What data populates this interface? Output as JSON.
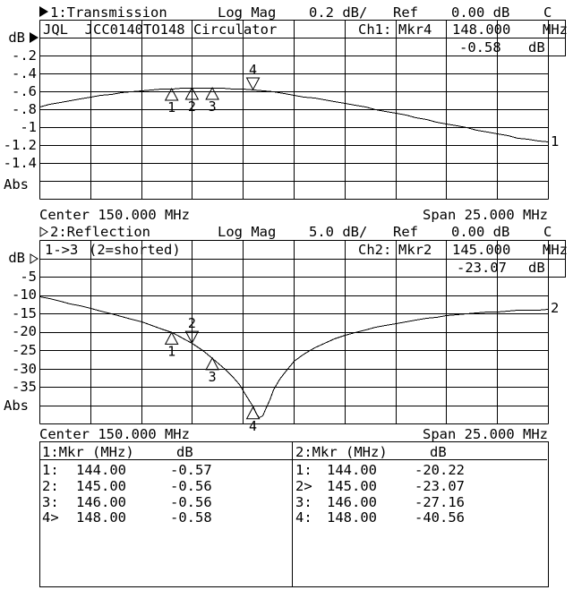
{
  "ch1": {
    "header": {
      "title": "1:Transmission",
      "format": "Log Mag",
      "scale": "0.2 dB/",
      "ref_label": "Ref",
      "ref_value": "0.00 dB",
      "cor": "C"
    },
    "info": {
      "device": "JQL  JCC0140TO148 Circulator",
      "mkr_channel": "Ch1:",
      "mkr_name": "Mkr4",
      "mkr_freq": "148.000",
      "mkr_freq_unit": "MHz",
      "mkr_value": "-0.58",
      "mkr_value_unit": "dB"
    },
    "y_axis": {
      "unit": "dB",
      "ticks": [
        "-.2",
        "-.4",
        "-.6",
        "-.8",
        "-1",
        "-1.2",
        "-1.4"
      ],
      "abs": "Abs"
    },
    "center": "Center 150.000 MHz",
    "span": "Span 25.000 MHz",
    "trace_number": "1"
  },
  "ch2": {
    "header": {
      "title": "2:Reflection",
      "format": "Log Mag",
      "scale": "5.0 dB/",
      "ref_label": "Ref",
      "ref_value": "0.00 dB",
      "cor": "C"
    },
    "info": {
      "path": "1->3",
      "note": "(2=shorted)",
      "mkr_channel": "Ch2:",
      "mkr_name": "Mkr2",
      "mkr_freq": "145.000",
      "mkr_freq_unit": "MHz",
      "mkr_value": "-23.07",
      "mkr_value_unit": "dB"
    },
    "y_axis": {
      "unit": "dB",
      "ticks": [
        "-5",
        "-10",
        "-15",
        "-20",
        "-25",
        "-30",
        "-35"
      ],
      "abs": "Abs"
    },
    "center": "Center 150.000 MHz",
    "span": "Span 25.000 MHz",
    "trace_number": "2"
  },
  "tables": {
    "t1": {
      "title": "1:Mkr (MHz)",
      "unit": "dB",
      "rows": [
        [
          "1:",
          "144.00",
          "-0.57"
        ],
        [
          "2:",
          "145.00",
          "-0.56"
        ],
        [
          "3:",
          "146.00",
          "-0.56"
        ],
        [
          "4>",
          "148.00",
          "-0.58"
        ]
      ]
    },
    "t2": {
      "title": "2:Mkr (MHz)",
      "unit": "dB",
      "rows": [
        [
          "1:",
          "144.00",
          "-20.22"
        ],
        [
          "2>",
          "145.00",
          "-23.07"
        ],
        [
          "3:",
          "146.00",
          "-27.16"
        ],
        [
          "4:",
          "148.00",
          "-40.56"
        ]
      ]
    }
  },
  "chart_data": [
    {
      "type": "line",
      "title": "1:Transmission",
      "format": "Log Mag",
      "scale_db_per_div": 0.2,
      "ref_db": 0.0,
      "x_unit": "MHz",
      "center_mhz": 150.0,
      "span_mhz": 25.0,
      "xlim": [
        137.5,
        162.5
      ],
      "ylim": [
        -1.8,
        0.2
      ],
      "grid": [
        10,
        10
      ],
      "series": [
        {
          "name": "1",
          "points": [
            [
              137.5,
              -0.77
            ],
            [
              138,
              -0.74
            ],
            [
              138.5,
              -0.72
            ],
            [
              139,
              -0.7
            ],
            [
              139.5,
              -0.68
            ],
            [
              140,
              -0.66
            ],
            [
              140.5,
              -0.64
            ],
            [
              141,
              -0.63
            ],
            [
              141.5,
              -0.61
            ],
            [
              142,
              -0.6
            ],
            [
              142.5,
              -0.59
            ],
            [
              143,
              -0.58
            ],
            [
              143.5,
              -0.575
            ],
            [
              144,
              -0.57
            ],
            [
              144.5,
              -0.565
            ],
            [
              145,
              -0.56
            ],
            [
              145.5,
              -0.558
            ],
            [
              146,
              -0.56
            ],
            [
              146.5,
              -0.565
            ],
            [
              147,
              -0.57
            ],
            [
              147.5,
              -0.575
            ],
            [
              148,
              -0.58
            ],
            [
              148.5,
              -0.59
            ],
            [
              149,
              -0.6
            ],
            [
              149.5,
              -0.62
            ],
            [
              150,
              -0.64
            ],
            [
              150.5,
              -0.655
            ],
            [
              151,
              -0.67
            ],
            [
              151.5,
              -0.69
            ],
            [
              152,
              -0.71
            ],
            [
              152.5,
              -0.73
            ],
            [
              153,
              -0.75
            ],
            [
              153.5,
              -0.77
            ],
            [
              154,
              -0.8
            ],
            [
              154.5,
              -0.82
            ],
            [
              155,
              -0.84
            ],
            [
              155.5,
              -0.86
            ],
            [
              156,
              -0.89
            ],
            [
              156.5,
              -0.91
            ],
            [
              157,
              -0.94
            ],
            [
              157.5,
              -0.96
            ],
            [
              158,
              -0.98
            ],
            [
              158.5,
              -1.0
            ],
            [
              159,
              -1.03
            ],
            [
              159.5,
              -1.05
            ],
            [
              160,
              -1.07
            ],
            [
              160.5,
              -1.09
            ],
            [
              161,
              -1.12
            ],
            [
              161.5,
              -1.13
            ],
            [
              162,
              -1.15
            ],
            [
              162.5,
              -1.16
            ]
          ]
        }
      ],
      "markers": [
        {
          "n": "1",
          "mhz": 144.0,
          "db": -0.57,
          "active": false
        },
        {
          "n": "2",
          "mhz": 145.0,
          "db": -0.56,
          "active": false
        },
        {
          "n": "3",
          "mhz": 146.0,
          "db": -0.56,
          "active": false
        },
        {
          "n": "4",
          "mhz": 148.0,
          "db": -0.58,
          "active": true
        }
      ]
    },
    {
      "type": "line",
      "title": "2:Reflection",
      "format": "Log Mag",
      "scale_db_per_div": 5.0,
      "ref_db": 0.0,
      "x_unit": "MHz",
      "center_mhz": 150.0,
      "span_mhz": 25.0,
      "xlim": [
        137.5,
        162.5
      ],
      "ylim": [
        -45,
        5
      ],
      "grid": [
        10,
        10
      ],
      "series": [
        {
          "name": "2",
          "points": [
            [
              137.5,
              -10.3
            ],
            [
              138,
              -10.9
            ],
            [
              138.5,
              -11.6
            ],
            [
              139,
              -12.2
            ],
            [
              139.5,
              -12.9
            ],
            [
              140,
              -13.6
            ],
            [
              140.5,
              -14.3
            ],
            [
              141,
              -15.0
            ],
            [
              141.5,
              -15.8
            ],
            [
              142,
              -16.5
            ],
            [
              142.5,
              -17.3
            ],
            [
              143,
              -18.2
            ],
            [
              143.5,
              -19.2
            ],
            [
              144,
              -20.22
            ],
            [
              144.5,
              -21.6
            ],
            [
              145,
              -23.07
            ],
            [
              145.5,
              -24.9
            ],
            [
              146,
              -27.16
            ],
            [
              146.3,
              -28.6
            ],
            [
              146.6,
              -30.1
            ],
            [
              147,
              -32.2
            ],
            [
              147.3,
              -34.2
            ],
            [
              147.6,
              -36.7
            ],
            [
              147.8,
              -38.6
            ],
            [
              148,
              -40.56
            ],
            [
              148.15,
              -42.3
            ],
            [
              148.3,
              -43.3
            ],
            [
              148.45,
              -42.7
            ],
            [
              148.6,
              -41.0
            ],
            [
              148.8,
              -38.3
            ],
            [
              149,
              -35.8
            ],
            [
              149.3,
              -32.8
            ],
            [
              149.6,
              -30.5
            ],
            [
              150,
              -28.0
            ],
            [
              150.5,
              -25.9
            ],
            [
              151,
              -24.3
            ],
            [
              151.5,
              -23.0
            ],
            [
              152,
              -21.9
            ],
            [
              152.5,
              -20.9
            ],
            [
              153,
              -20.1
            ],
            [
              153.5,
              -19.4
            ],
            [
              154,
              -18.7
            ],
            [
              154.5,
              -18.2
            ],
            [
              155,
              -17.6
            ],
            [
              155.5,
              -17.2
            ],
            [
              156,
              -16.7
            ],
            [
              156.5,
              -16.3
            ],
            [
              157,
              -16.0
            ],
            [
              157.5,
              -15.6
            ],
            [
              158,
              -15.3
            ],
            [
              158.5,
              -15.1
            ],
            [
              159,
              -14.8
            ],
            [
              159.5,
              -14.6
            ],
            [
              160,
              -14.4
            ],
            [
              160.5,
              -14.2
            ],
            [
              161,
              -14.1
            ],
            [
              161.5,
              -14.0
            ],
            [
              162,
              -13.95
            ],
            [
              162.5,
              -13.9
            ]
          ]
        }
      ],
      "markers": [
        {
          "n": "1",
          "mhz": 144.0,
          "db": -20.22,
          "active": false
        },
        {
          "n": "2",
          "mhz": 145.0,
          "db": -23.07,
          "active": true
        },
        {
          "n": "3",
          "mhz": 146.0,
          "db": -27.16,
          "active": false
        },
        {
          "n": "4",
          "mhz": 148.0,
          "db": -40.56,
          "active": false
        }
      ]
    }
  ]
}
